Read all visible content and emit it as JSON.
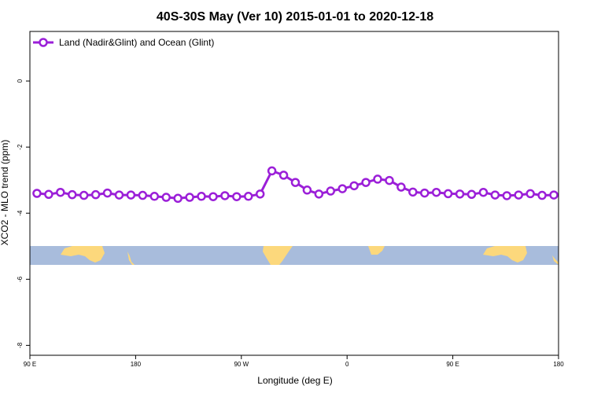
{
  "chart_data": {
    "type": "line",
    "title": "40S-30S May (Ver 10)   2015-01-01 to 2020-12-18",
    "xlabel": "Longitude (deg E)",
    "ylabel": "XCO2 - MLO trend (ppm)",
    "x_ticks": [
      {
        "lon": 90,
        "label": "90 E"
      },
      {
        "lon": 180,
        "label": "180"
      },
      {
        "lon": 270,
        "label": "90 W"
      },
      {
        "lon": 360,
        "label": "0"
      },
      {
        "lon": 450,
        "label": "90 E"
      },
      {
        "lon": 540,
        "label": "180"
      }
    ],
    "y_ticks": [
      {
        "value": 0,
        "label": "0"
      },
      {
        "value": -2,
        "label": "-2"
      },
      {
        "value": -4,
        "label": "-4"
      },
      {
        "value": -6,
        "label": "-6"
      },
      {
        "value": -8,
        "label": "-8"
      }
    ],
    "xlim": [
      90,
      540
    ],
    "ylim": [
      -8.3,
      1.5
    ],
    "grid": false,
    "legend_position": "top-left",
    "series": [
      {
        "name": "Land (Nadir&Glint) and Ocean (Glint)",
        "color": "#9b1fd8",
        "x": [
          96,
          106,
          116,
          126,
          136,
          146,
          156,
          166,
          176,
          186,
          196,
          206,
          216,
          226,
          236,
          246,
          256,
          266,
          276,
          286,
          296,
          306,
          316,
          326,
          336,
          346,
          356,
          366,
          376,
          386,
          396,
          406,
          416,
          426,
          436,
          446,
          456,
          466,
          476,
          486,
          496,
          506,
          516,
          526,
          536
        ],
        "values": [
          -3.4,
          -3.43,
          -3.37,
          -3.44,
          -3.46,
          -3.44,
          -3.39,
          -3.45,
          -3.45,
          -3.46,
          -3.49,
          -3.52,
          -3.55,
          -3.52,
          -3.49,
          -3.5,
          -3.47,
          -3.5,
          -3.49,
          -3.42,
          -2.72,
          -2.85,
          -3.07,
          -3.3,
          -3.42,
          -3.33,
          -3.26,
          -3.17,
          -3.07,
          -2.97,
          -3.01,
          -3.21,
          -3.36,
          -3.39,
          -3.37,
          -3.41,
          -3.42,
          -3.43,
          -3.37,
          -3.45,
          -3.47,
          -3.45,
          -3.41,
          -3.46,
          -3.45
        ]
      }
    ]
  },
  "map_strip": {
    "ocean_color": "#a8bcdc",
    "land_color": "#fcd87c"
  }
}
